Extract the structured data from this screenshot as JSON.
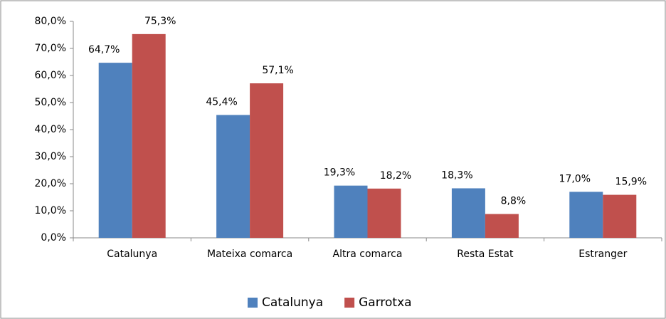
{
  "chart_data": {
    "type": "bar",
    "categories": [
      "Catalunya",
      "Mateixa comarca",
      "Altra comarca",
      "Resta Estat",
      "Estranger"
    ],
    "series": [
      {
        "name": "Catalunya",
        "color": "#4f81bd",
        "values": [
          64.7,
          45.4,
          19.3,
          18.3,
          17.0
        ],
        "value_labels": [
          "64,7%",
          "45,4%",
          "19,3%",
          "18,3%",
          "17,0%"
        ]
      },
      {
        "name": "Garrotxa",
        "color": "#c0504d",
        "values": [
          75.3,
          57.1,
          18.2,
          8.8,
          15.9
        ],
        "value_labels": [
          "75,3%",
          "57,1%",
          "18,2%",
          "8,8%",
          "15,9%"
        ]
      }
    ],
    "ylim": [
      0,
      80
    ],
    "yticks": [
      {
        "value": 0,
        "label": "0,0%"
      },
      {
        "value": 10,
        "label": "10,0%"
      },
      {
        "value": 20,
        "label": "20,0%"
      },
      {
        "value": 30,
        "label": "30,0%"
      },
      {
        "value": 40,
        "label": "40,0%"
      },
      {
        "value": 50,
        "label": "50,0%"
      },
      {
        "value": 60,
        "label": "60,0%"
      },
      {
        "value": 70,
        "label": "70,0%"
      },
      {
        "value": 80,
        "label": "80,0%"
      }
    ],
    "grid": false,
    "legend": "bottom"
  }
}
